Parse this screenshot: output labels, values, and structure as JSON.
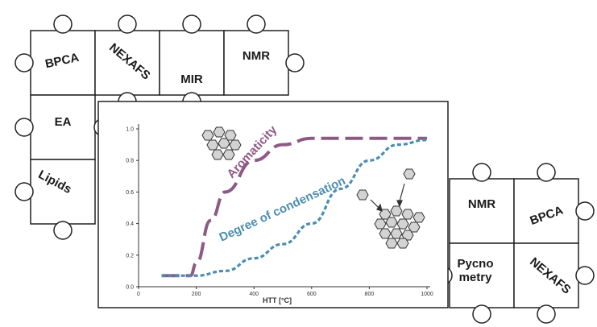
{
  "puzzle_left": {
    "pieces": [
      "BPCA",
      "NEXAFS",
      "MIR",
      "NMR",
      "EA",
      "Lipids"
    ]
  },
  "puzzle_right": {
    "pieces": [
      "NMR",
      "BPCA",
      "Pycno metry",
      "NEXAFS"
    ]
  },
  "chart_data": {
    "type": "line",
    "xlabel": "HTT [°C]",
    "ylabel": "",
    "xlim": [
      0,
      1000
    ],
    "ylim": [
      0,
      1.0
    ],
    "xticks": [
      "0",
      "200",
      "400",
      "600",
      "800",
      "1000"
    ],
    "yticks": [
      "0.0",
      "0.2",
      "0.4",
      "0.6",
      "0.8",
      "1.0"
    ],
    "series": [
      {
        "name": "Aromaticity",
        "color": "#8e5a84",
        "x": [
          80,
          180,
          200,
          250,
          300,
          400,
          500,
          600,
          800,
          1000
        ],
        "y": [
          0.07,
          0.07,
          0.15,
          0.42,
          0.6,
          0.8,
          0.9,
          0.94,
          0.94,
          0.94
        ]
      },
      {
        "name": "Degree of condensation",
        "color": "#4d8db0",
        "x": [
          80,
          200,
          300,
          400,
          500,
          600,
          700,
          800,
          900,
          1000
        ],
        "y": [
          0.07,
          0.07,
          0.1,
          0.18,
          0.27,
          0.4,
          0.62,
          0.8,
          0.9,
          0.93
        ]
      }
    ]
  }
}
